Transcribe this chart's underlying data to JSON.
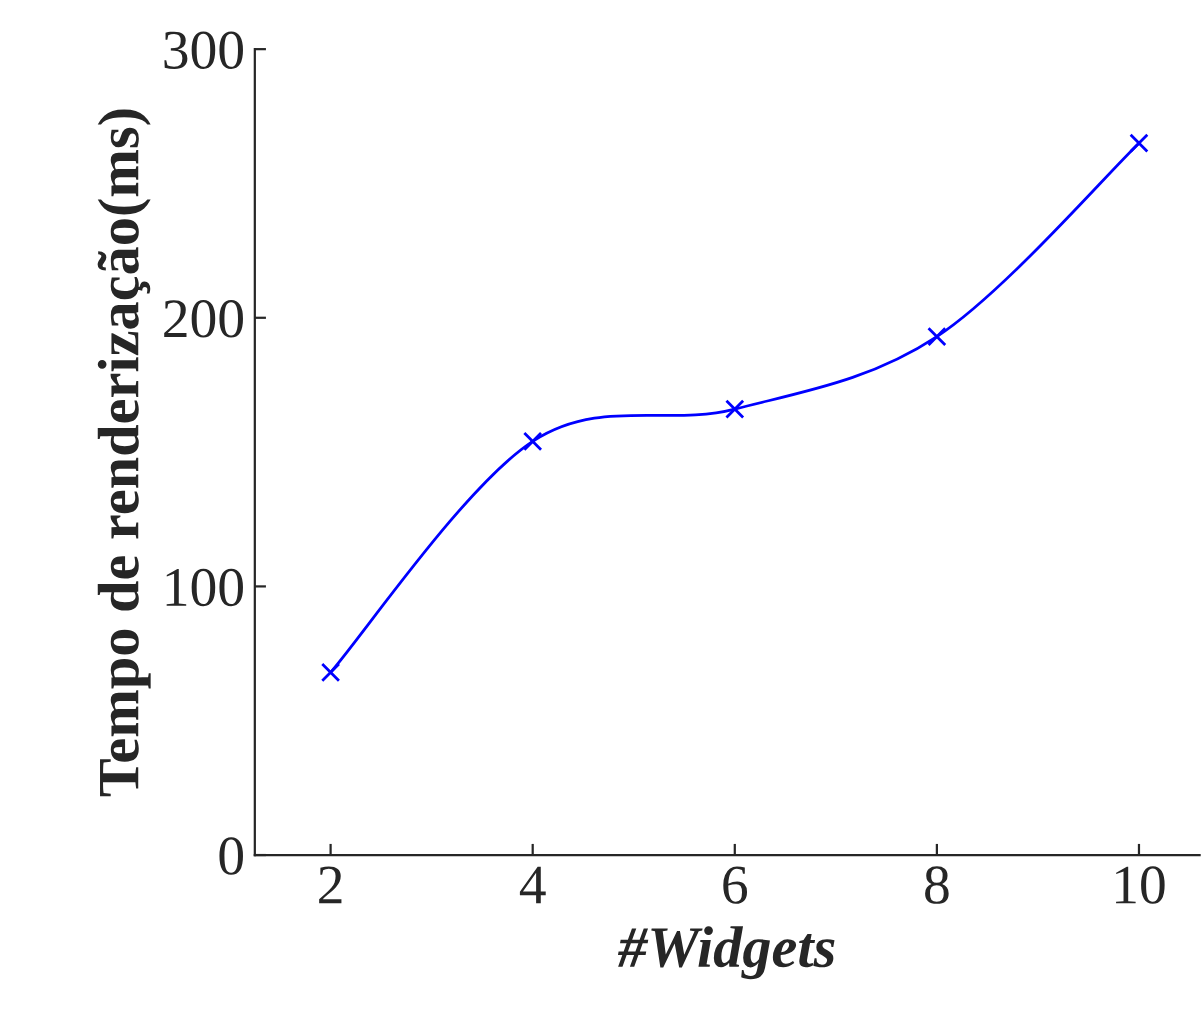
{
  "chart_data": {
    "type": "line",
    "xlabel": "#Widgets",
    "ylabel": "Tempo de renderização(ms)",
    "x": [
      2,
      4,
      6,
      8,
      10
    ],
    "series": [
      {
        "color": "#0000ff",
        "values": [
          68,
          154,
          166,
          193,
          265
        ]
      }
    ],
    "xlim": [
      1.25,
      10.6
    ],
    "ylim": [
      0,
      300
    ],
    "xticks": [
      2,
      4,
      6,
      8,
      10
    ],
    "yticks": [
      0,
      100,
      200,
      300
    ],
    "marker": "cross",
    "line_style": "solid",
    "grid": false,
    "legend": false
  }
}
